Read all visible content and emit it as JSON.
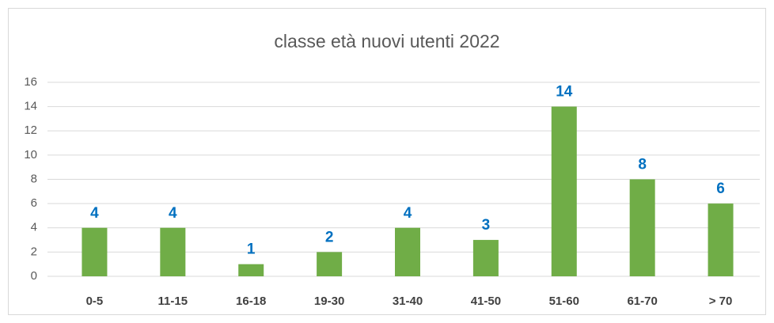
{
  "chart_data": {
    "type": "bar",
    "title": "classe età nuovi utenti 2022",
    "categories": [
      "0-5",
      "11-15",
      "16-18",
      "19-30",
      "31-40",
      "41-50",
      "51-60",
      "61-70",
      "> 70"
    ],
    "values": [
      4,
      4,
      1,
      2,
      4,
      3,
      14,
      8,
      6
    ],
    "color": "#70ad47",
    "label_color": "#0070c0",
    "ylim": [
      0,
      16
    ],
    "yticks": [
      0,
      2,
      4,
      6,
      8,
      10,
      12,
      14,
      16
    ],
    "grid": true
  }
}
